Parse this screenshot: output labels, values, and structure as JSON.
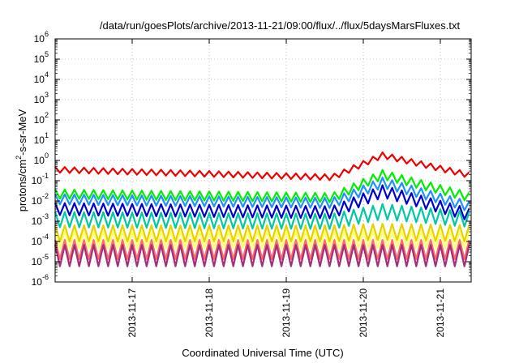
{
  "chart_data": {
    "type": "line",
    "title": "/data/run/goesPlots/archive/2013-11-21/09:00/flux/../flux/5daysMarsFluxes.txt",
    "xlabel": "Coordinated Universal Time (UTC)",
    "ylabel": {
      "prefix": "protons/cm",
      "sup": "2",
      "suffix": "-s-sr-MeV"
    },
    "x_ticks": [
      "2013-11-17",
      "2013-11-18",
      "2013-11-19",
      "2013-11-20",
      "2013-11-21"
    ],
    "xlim_days": [
      0,
      5.4
    ],
    "y_scale": "log",
    "ylim_exp": [
      -6,
      6
    ],
    "y_ticks": [
      {
        "base": "10",
        "exp": "-6"
      },
      {
        "base": "10",
        "exp": "-5"
      },
      {
        "base": "10",
        "exp": "-4"
      },
      {
        "base": "10",
        "exp": "-3"
      },
      {
        "base": "10",
        "exp": "-2"
      },
      {
        "base": "10",
        "exp": "-1"
      },
      {
        "base": "10",
        "exp": "0"
      },
      {
        "base": "10",
        "exp": "1"
      },
      {
        "base": "10",
        "exp": "2"
      },
      {
        "base": "10",
        "exp": "3"
      },
      {
        "base": "10",
        "exp": "4"
      },
      {
        "base": "10",
        "exp": "5"
      },
      {
        "base": "10",
        "exp": "6"
      }
    ],
    "grid": true,
    "series": [
      {
        "color": "#ee0000",
        "base": 0.35,
        "slope": -0.42,
        "sawtooth_amp": 0.28,
        "event_peak": 1.8,
        "end": 0.18
      },
      {
        "color": "#00ee00",
        "base": 0.022,
        "slope": -0.2,
        "sawtooth_amp": 0.45,
        "event_peak": 0.2,
        "end": 0.015
      },
      {
        "color": "#1e90ff",
        "base": 0.012,
        "slope": -0.2,
        "sawtooth_amp": 0.5,
        "event_peak": 0.08,
        "end": 0.005
      },
      {
        "color": "#0000cc",
        "base": 0.004,
        "slope": -0.18,
        "sawtooth_amp": 0.6,
        "event_peak": 0.03,
        "end": 0.002
      },
      {
        "color": "#00c8a0",
        "base": 0.0012,
        "slope": -0.1,
        "sawtooth_amp": 0.75,
        "event_peak": 0.003,
        "end": 0.0012
      },
      {
        "color": "#e6d000",
        "base": 0.00025,
        "slope": 0.0,
        "sawtooth_amp": 0.8,
        "event_peak": 0.0003,
        "end": 0.00025
      },
      {
        "color": "#ffff70",
        "base": 0.00012,
        "slope": 0.0,
        "sawtooth_amp": 0.85,
        "event_peak": 0.00013,
        "end": 0.00012
      },
      {
        "color": "#ff6a6a",
        "base": 4e-05,
        "slope": 0.0,
        "sawtooth_amp": 0.95,
        "event_peak": 4e-05,
        "end": 4e-05
      },
      {
        "color": "#a0307a",
        "base": 2e-05,
        "slope": 0.0,
        "sawtooth_amp": 1.05,
        "event_peak": 2e-05,
        "end": 2e-05
      }
    ]
  }
}
